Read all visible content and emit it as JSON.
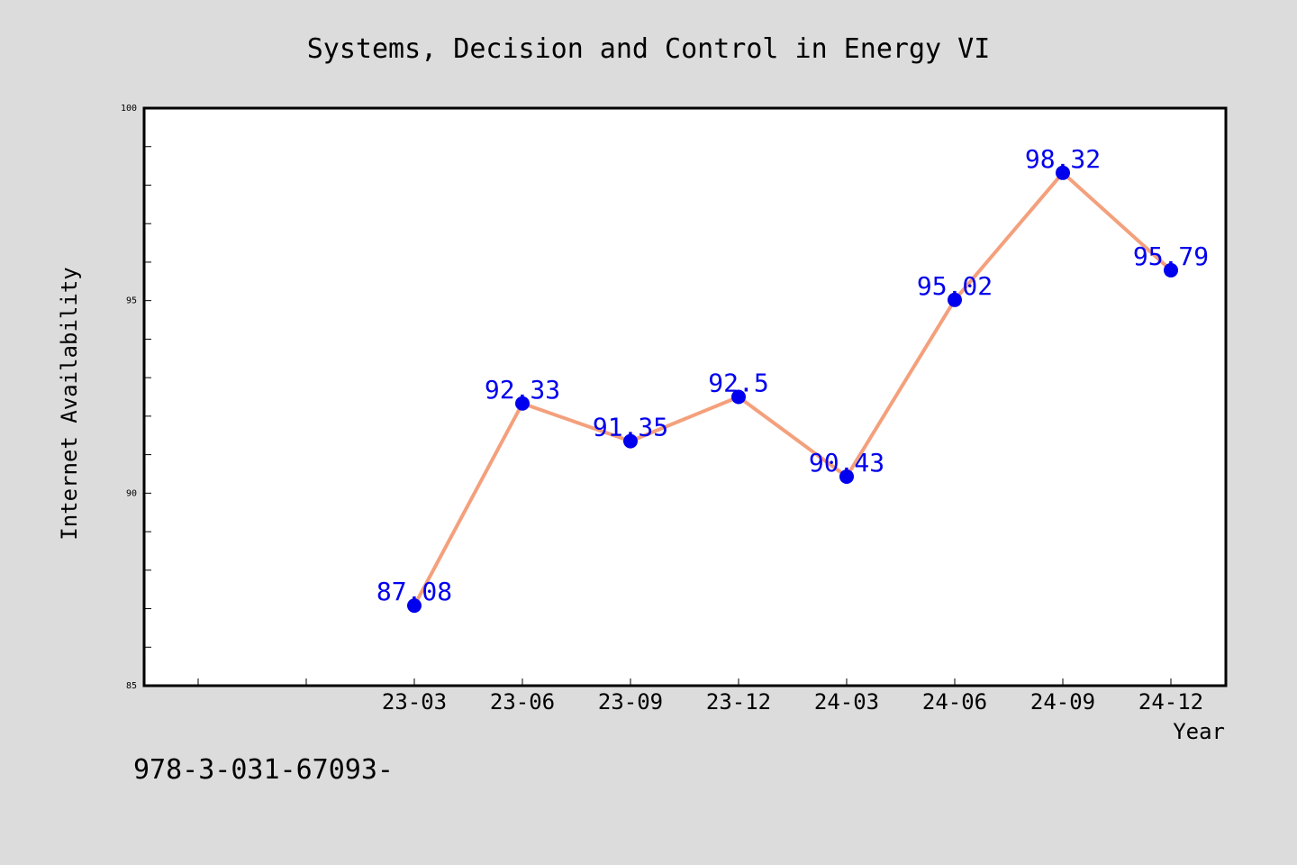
{
  "chart_data": {
    "type": "line",
    "title": "Systems, Decision and Control in Energy VI",
    "xlabel": "Year",
    "ylabel": "Internet Availability",
    "categories": [
      "23-03",
      "23-06",
      "23-09",
      "23-12",
      "24-03",
      "24-06",
      "24-09",
      "24-12"
    ],
    "series": [
      {
        "values": [
          87.08,
          92.33,
          91.35,
          92.5,
          90.43,
          95.02,
          98.32,
          95.79
        ],
        "data_labels": [
          "87.08",
          "92.33",
          "91.35",
          "92.5",
          "90.43",
          "95.02",
          "98.32",
          "95.79"
        ],
        "line_color": "#f4a07c",
        "marker_color": "#0000ee",
        "label_color": "#0000ee"
      }
    ],
    "ylim": [
      85,
      100
    ],
    "y_ticks": [
      85,
      90,
      95,
      100
    ],
    "y_tick_labels": [
      "85",
      "90",
      "95",
      "100"
    ],
    "grid": false,
    "legend": "none"
  },
  "footer": {
    "text": "978-3-031-67093-"
  },
  "colors": {
    "background": "#dcdcdc",
    "plot_background": "#ffffff",
    "axis": "#000000"
  }
}
